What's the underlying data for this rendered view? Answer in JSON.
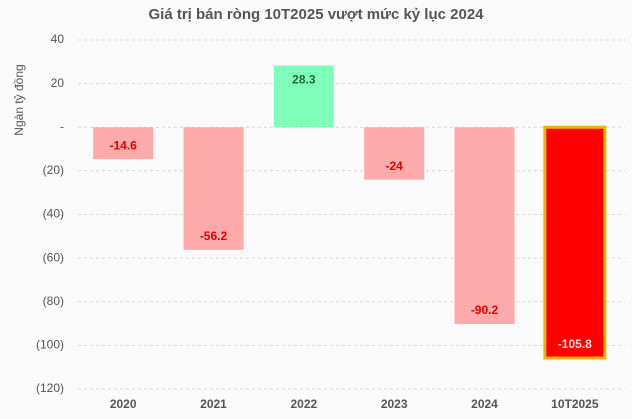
{
  "chart_data": {
    "type": "bar",
    "title": "Giá trị bán ròng 10T2025 vượt mức kỷ lục 2024",
    "y_label": "Ngàn tỷ đồng",
    "categories": [
      "2020",
      "2021",
      "2022",
      "2023",
      "2024",
      "10T2025"
    ],
    "values": [
      -14.6,
      -56.2,
      28.3,
      -24.0,
      -90.2,
      -105.8
    ],
    "colors": [
      "#ffaaaa",
      "#ffaaaa",
      "#80ffb8",
      "#ffaaaa",
      "#ffaaaa",
      "#ff0000"
    ],
    "label_colors": [
      "#e00000",
      "#e00000",
      "#1e6b38",
      "#e00000",
      "#e00000",
      "#ffe0e0"
    ],
    "highlight_border": "#f0b400",
    "ylim": [
      -120,
      40
    ],
    "yticks": [
      40,
      20,
      {
        "value": 0,
        "label": "-"
      },
      {
        "value": -20,
        "label": "(20)"
      },
      {
        "value": -40,
        "label": "(40)"
      },
      {
        "value": -60,
        "label": "(60)"
      },
      {
        "value": -80,
        "label": "(80)"
      },
      {
        "value": -100,
        "label": "(100)"
      },
      {
        "value": -120,
        "label": "(120)"
      }
    ],
    "grid": true
  }
}
